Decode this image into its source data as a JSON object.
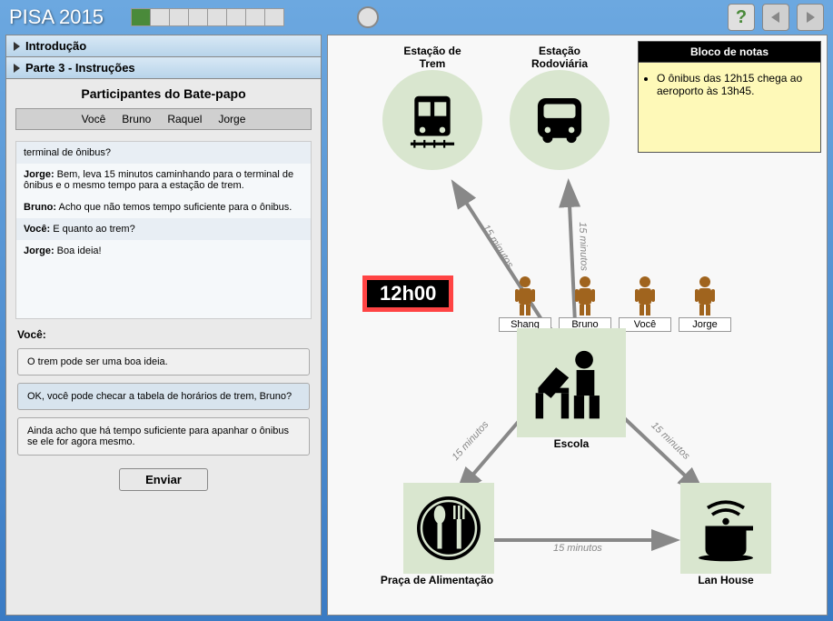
{
  "brand": "PISA 2015",
  "progress": {
    "total": 8,
    "done": 1
  },
  "accordion": {
    "intro": "Introdução",
    "part3": "Parte 3 - Instruções"
  },
  "chat": {
    "title": "Participantes do Bate-papo",
    "tabs": [
      "Você",
      "Bruno",
      "Raquel",
      "Jorge"
    ],
    "log": [
      {
        "text": "terminal de ônibus?",
        "alt": true
      },
      {
        "who": "Jorge",
        "text": "Bem, leva 15 minutos caminhando para o terminal de ônibus e o mesmo tempo para a estação de trem."
      },
      {
        "who": "Bruno",
        "text": "Acho que não temos tempo suficiente para o ônibus."
      },
      {
        "who": "Você",
        "text": "E quanto ao trem?",
        "alt": true
      },
      {
        "who": "Jorge",
        "text": "Boa ideia!"
      }
    ],
    "youLabel": "Você:",
    "choices": [
      "O trem pode ser uma boa ideia.",
      "OK, você pode checar a tabela de horários de trem, Bruno?",
      "Ainda acho que há tempo suficiente para apanhar o ônibus se ele for agora mesmo."
    ],
    "selected": 1,
    "send": "Enviar"
  },
  "notepad": {
    "title": "Bloco de notas",
    "item": "O ônibus das 12h15 chega ao aeroporto às 13h45."
  },
  "clock": "12h00",
  "people": [
    "Shang",
    "Bruno",
    "Você",
    "Jorge"
  ],
  "nodes": {
    "train": "Estação de\nTrem",
    "bus": "Estação\nRodoviária",
    "school": "Escola",
    "food": "Praça de Alimentação",
    "lan": "Lan House"
  },
  "edges": {
    "school_train": "15 minutos",
    "school_bus": "15 minutos",
    "school_food": "15 minutos",
    "school_lan": "15 minutos",
    "food_lan": "15 minutos"
  },
  "colors": {
    "node_bg": "#d9e6cf",
    "arrow": "#888888",
    "person": "#a0641e"
  }
}
